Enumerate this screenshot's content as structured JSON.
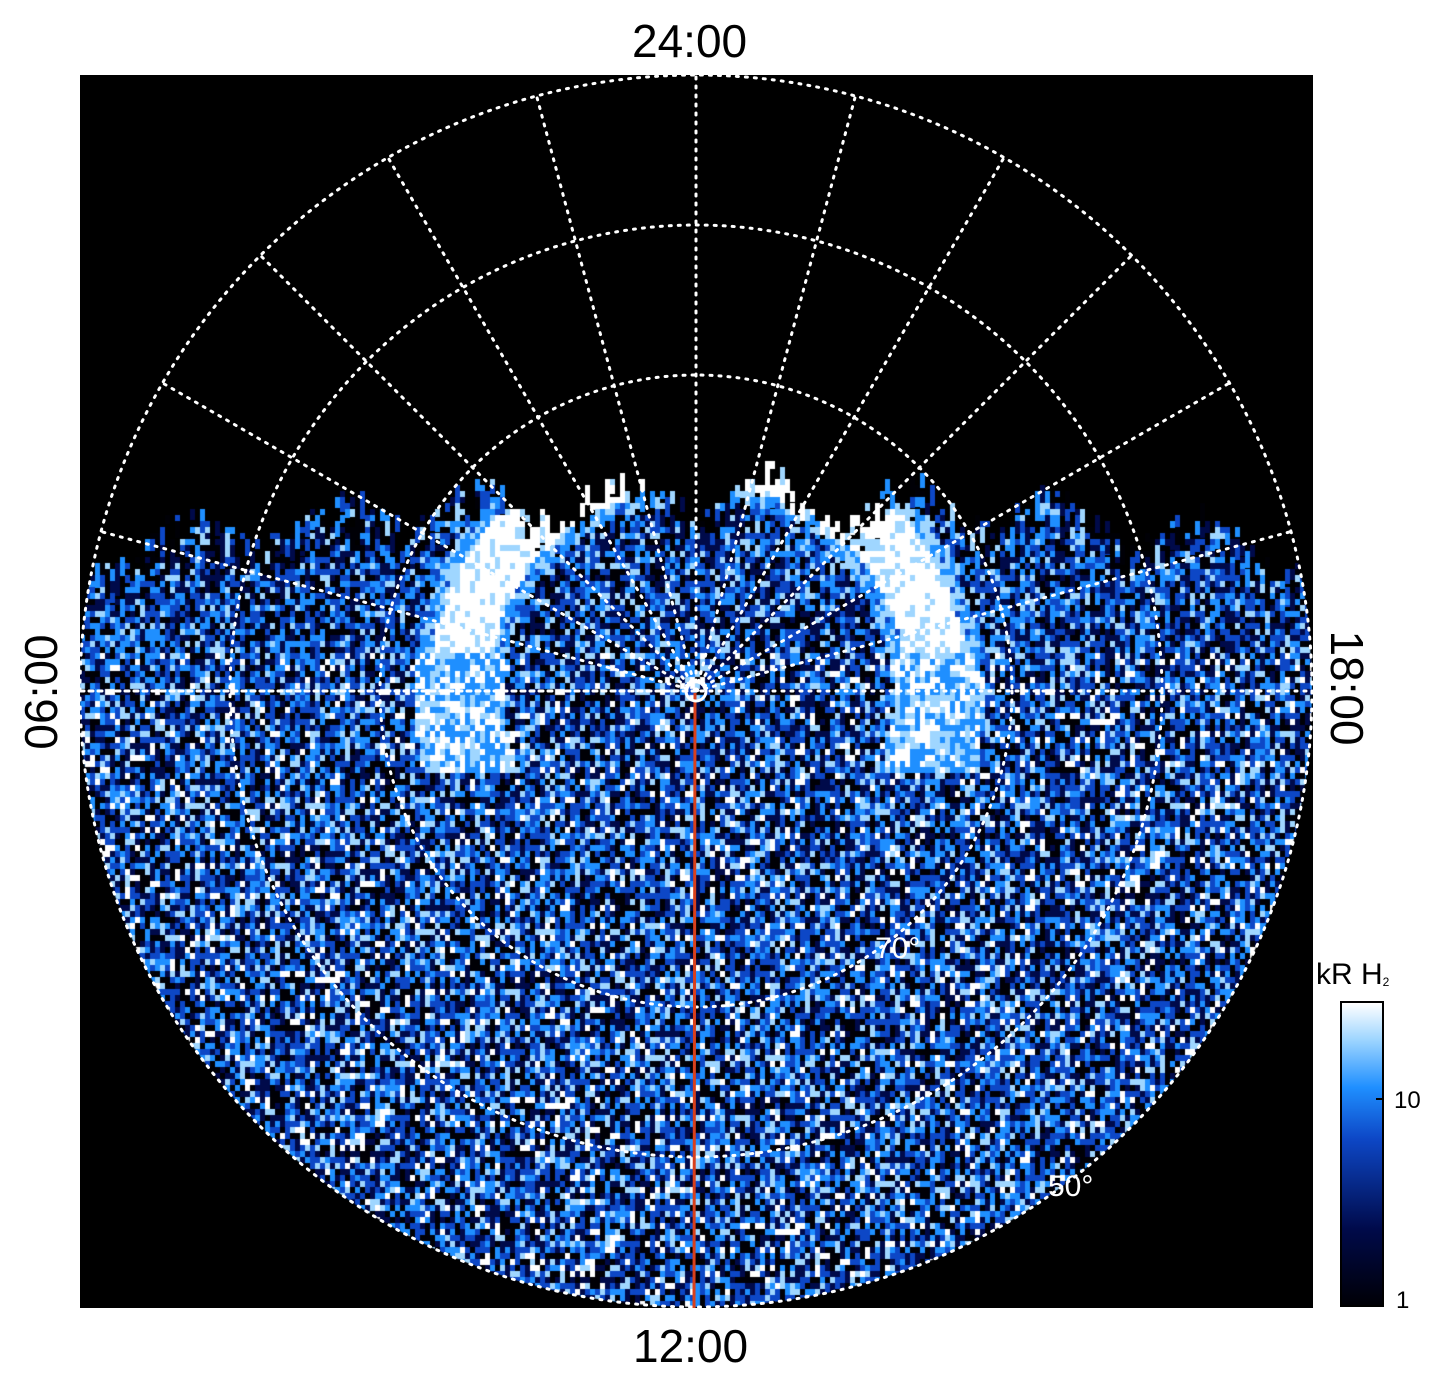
{
  "local_time_labels": {
    "top": "24:00",
    "bottom": "12:00",
    "left": "06:00",
    "right": "18:00"
  },
  "latitude_labels": {
    "inner": "70°",
    "outer": "50°"
  },
  "colorbar": {
    "title_main": "kR H",
    "title_sub": "2",
    "ticks": [
      "10",
      "1"
    ],
    "colors": [
      "#000006",
      "#000a4a",
      "#0d47c6",
      "#1f8fff",
      "#9fd6ff",
      "#ffffff"
    ]
  },
  "colors": {
    "background": "#000000",
    "grid": "#ffffff",
    "meridian_line": "#d8401c"
  }
}
